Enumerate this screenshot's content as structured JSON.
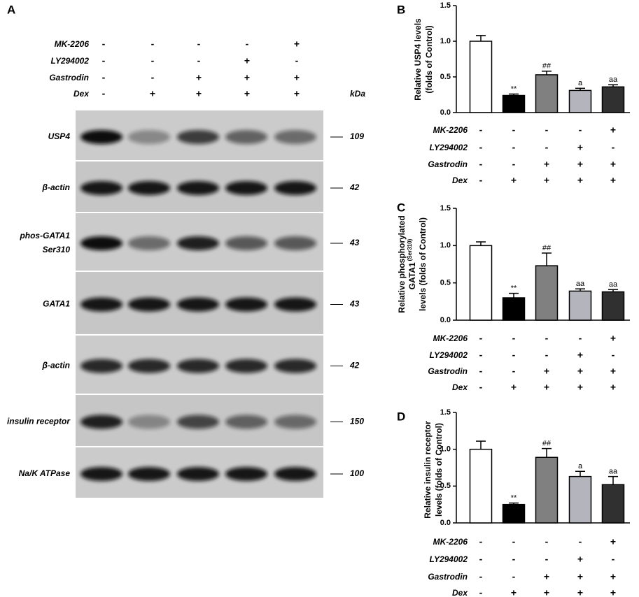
{
  "blot": {
    "panel": "A",
    "conditions": [
      {
        "name": "MK-2206",
        "signs": [
          "-",
          "-",
          "-",
          "-",
          "+"
        ]
      },
      {
        "name": "LY294002",
        "signs": [
          "-",
          "-",
          "-",
          "+",
          "-"
        ]
      },
      {
        "name": "Gastrodin",
        "signs": [
          "-",
          "-",
          "+",
          "+",
          "+"
        ]
      },
      {
        "name": "Dex",
        "signs": [
          "-",
          "+",
          "+",
          "+",
          "+"
        ]
      }
    ],
    "kda_header": "kDa",
    "rows": [
      {
        "label": [
          "USP4"
        ],
        "kda": 109
      },
      {
        "label": [
          "β-actin"
        ],
        "kda": 42
      },
      {
        "label": [
          "phos-GATA1",
          "Ser310"
        ],
        "kda": 43
      },
      {
        "label": [
          "GATA1"
        ],
        "kda": 43
      },
      {
        "label": [
          "β-actin"
        ],
        "kda": 42
      },
      {
        "label": [
          "insulin receptor"
        ],
        "kda": 150
      },
      {
        "label": [
          "Na/K ATPase"
        ],
        "kda": 100
      }
    ]
  },
  "chart_data": [
    {
      "type": "bar",
      "panel": "B",
      "ylabel": [
        "Relative USP4 levels",
        "(folds of Control)"
      ],
      "values": [
        1.0,
        0.24,
        0.53,
        0.31,
        0.36
      ],
      "errors": [
        0.08,
        0.02,
        0.05,
        0.03,
        0.03
      ],
      "colors": [
        "#ffffff",
        "#000000",
        "#808080",
        "#b4b4bc",
        "#303030"
      ],
      "annotations": [
        null,
        "**",
        "##",
        "a",
        "aa"
      ],
      "ylim": [
        0,
        1.5
      ],
      "yticks": [
        {
          "value": 0,
          "label": "0.0"
        },
        0.5,
        {
          "value": 1,
          "label": "1.0"
        },
        1.5
      ],
      "conditions": [
        {
          "name": "MK-2206",
          "signs": [
            "-",
            "-",
            "-",
            "-",
            "+"
          ]
        },
        {
          "name": "LY294002",
          "signs": [
            "-",
            "-",
            "-",
            "+",
            "-"
          ]
        },
        {
          "name": "Gastrodin",
          "signs": [
            "-",
            "-",
            "+",
            "+",
            "+"
          ]
        },
        {
          "name": "Dex",
          "signs": [
            "-",
            "+",
            "+",
            "+",
            "+"
          ]
        }
      ]
    },
    {
      "type": "bar",
      "panel": "C",
      "ylabel": [
        "Relative phosphorylated",
        "GATA1",
        "levels (folds of Control)"
      ],
      "ylabel_sup": "(Ser310)",
      "values": [
        1.0,
        0.3,
        0.73,
        0.39,
        0.38
      ],
      "errors": [
        0.05,
        0.06,
        0.17,
        0.03,
        0.03
      ],
      "colors": [
        "#ffffff",
        "#000000",
        "#808080",
        "#b4b4bc",
        "#303030"
      ],
      "annotations": [
        null,
        "**",
        "##",
        "aa",
        "aa"
      ],
      "ylim": [
        0,
        1.5
      ],
      "yticks": [
        {
          "value": 0,
          "label": "0.0"
        },
        0.5,
        {
          "value": 1,
          "label": "1.0"
        },
        1.5
      ],
      "conditions": [
        {
          "name": "MK-2206",
          "signs": [
            "-",
            "-",
            "-",
            "-",
            "+"
          ]
        },
        {
          "name": "LY294002",
          "signs": [
            "-",
            "-",
            "-",
            "+",
            "-"
          ]
        },
        {
          "name": "Gastrodin",
          "signs": [
            "-",
            "-",
            "+",
            "+",
            "+"
          ]
        },
        {
          "name": "Dex",
          "signs": [
            "-",
            "+",
            "+",
            "+",
            "+"
          ]
        }
      ]
    },
    {
      "type": "bar",
      "panel": "D",
      "ylabel": [
        "Relative insulin receptor",
        "levels (folds of Control)"
      ],
      "values": [
        1.0,
        0.25,
        0.89,
        0.63,
        0.52
      ],
      "errors": [
        0.11,
        0.02,
        0.12,
        0.07,
        0.11
      ],
      "colors": [
        "#ffffff",
        "#000000",
        "#808080",
        "#b4b4bc",
        "#303030"
      ],
      "annotations": [
        null,
        "**",
        "##",
        "a",
        "aa"
      ],
      "ylim": [
        0,
        1.5
      ],
      "yticks": [
        {
          "value": 0,
          "label": "0.0"
        },
        0.5,
        {
          "value": 1,
          "label": "1.0"
        },
        1.5
      ],
      "conditions": [
        {
          "name": "MK-2206",
          "signs": [
            "-",
            "-",
            "-",
            "-",
            "+"
          ]
        },
        {
          "name": "LY294002",
          "signs": [
            "-",
            "-",
            "-",
            "+",
            "-"
          ]
        },
        {
          "name": "Gastrodin",
          "signs": [
            "-",
            "-",
            "+",
            "+",
            "+"
          ]
        },
        {
          "name": "Dex",
          "signs": [
            "-",
            "+",
            "+",
            "+",
            "+"
          ]
        }
      ]
    }
  ]
}
